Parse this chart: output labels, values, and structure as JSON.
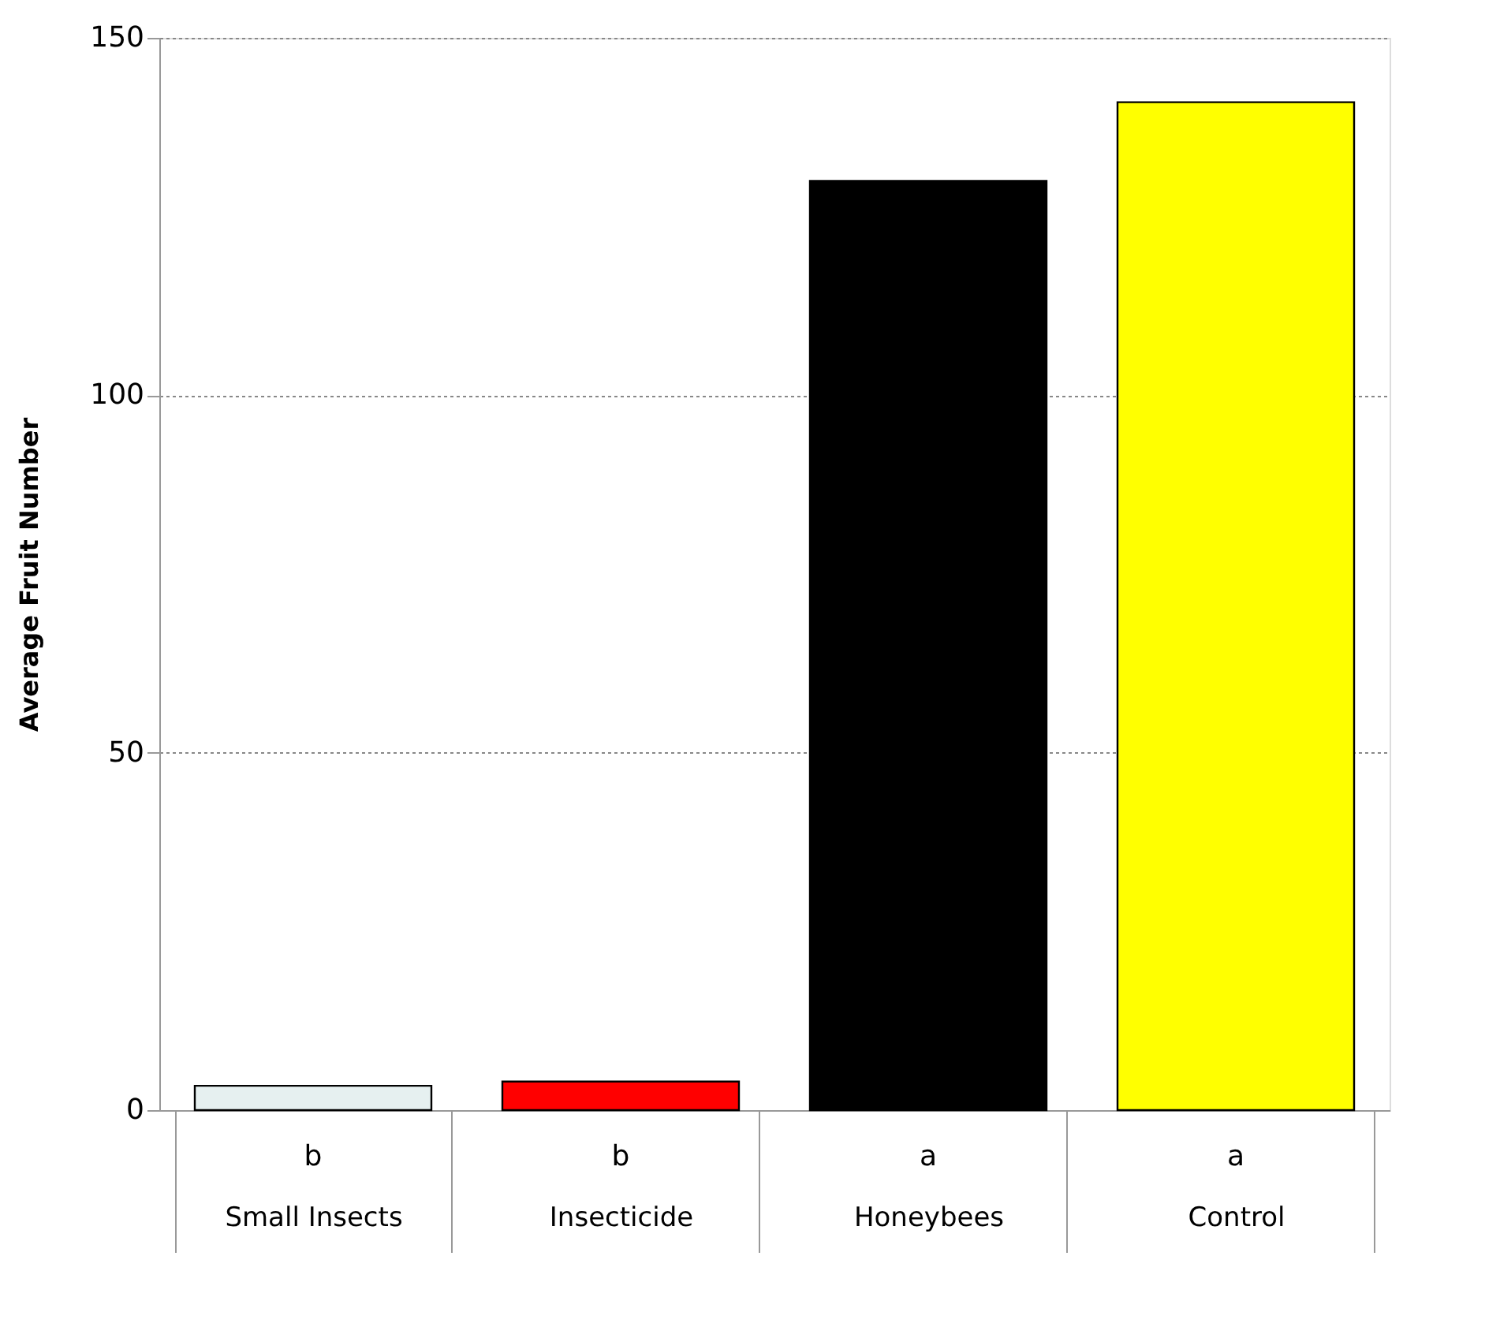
{
  "chart_data": {
    "type": "bar",
    "ylabel": "Average Fruit Number",
    "categories": [
      "Small Insects",
      "Insecticide",
      "Honeybees",
      "Control"
    ],
    "values": [
      3.4,
      4,
      130,
      141
    ],
    "colors": [
      "#e6f0f0",
      "#ff0000",
      "#000000",
      "#ffff00"
    ],
    "ylim": [
      0,
      150
    ],
    "yticks": [
      0,
      50,
      100,
      150
    ],
    "grid": "y",
    "annotations": [
      "b",
      "b",
      "a",
      "a"
    ]
  }
}
